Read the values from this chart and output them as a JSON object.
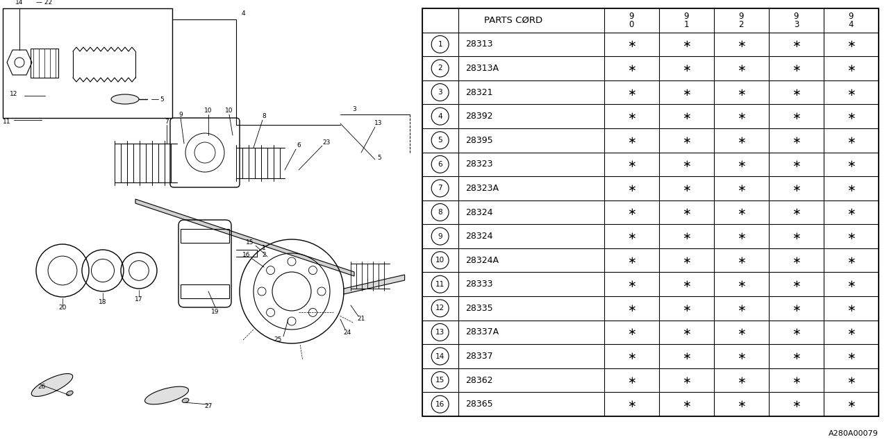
{
  "bg_color": "#ffffff",
  "parts": [
    [
      "1",
      "28313"
    ],
    [
      "2",
      "28313A"
    ],
    [
      "3",
      "28321"
    ],
    [
      "4",
      "28392"
    ],
    [
      "5",
      "28395"
    ],
    [
      "6",
      "28323"
    ],
    [
      "7",
      "28323A"
    ],
    [
      "8",
      "28324"
    ],
    [
      "9",
      "28324"
    ],
    [
      "10",
      "28324A"
    ],
    [
      "11",
      "28333"
    ],
    [
      "12",
      "28335"
    ],
    [
      "13",
      "28337A"
    ],
    [
      "14",
      "28337"
    ],
    [
      "15",
      "28362"
    ],
    [
      "16",
      "28365"
    ]
  ],
  "asterisk": "∗",
  "year_labels": [
    "9\n0",
    "9\n1",
    "9\n2",
    "9\n3",
    "9\n4"
  ],
  "header_text": "PARTS CØRD",
  "ref_code": "A280A00079",
  "line_color": "#000000",
  "diagram_split": 0.463
}
